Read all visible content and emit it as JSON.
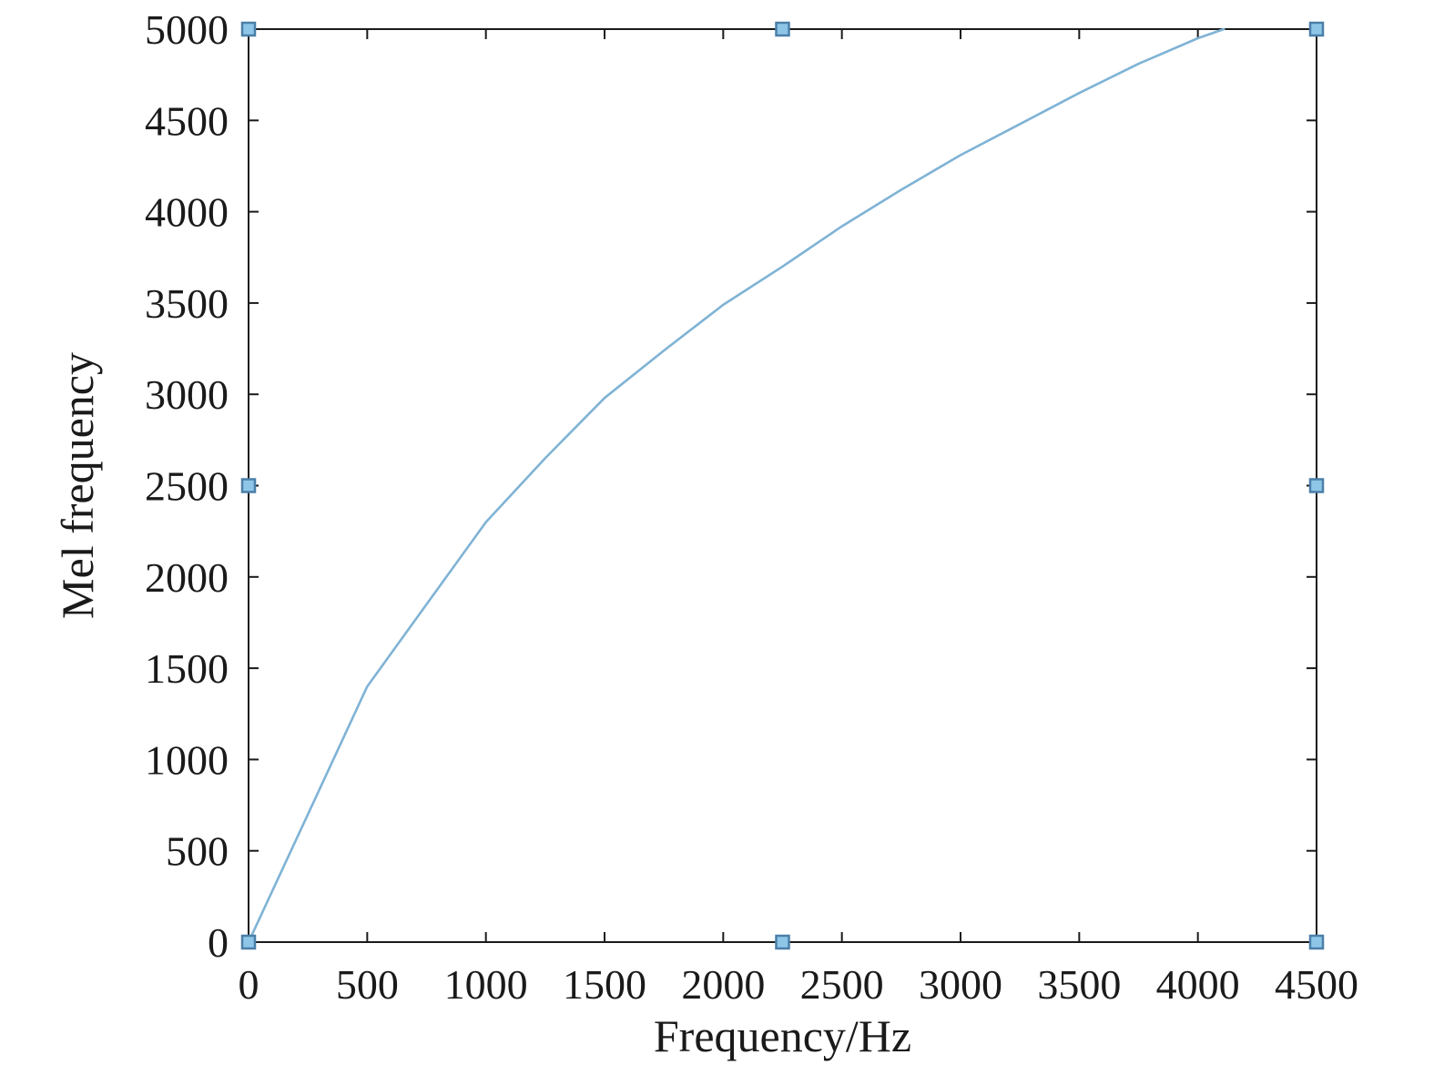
{
  "chart_data": {
    "type": "line",
    "title": "",
    "xlabel": "Frequency/Hz",
    "ylabel": "Mel frequency",
    "xlim": [
      0,
      4500
    ],
    "ylim": [
      0,
      5000
    ],
    "xticks": [
      "0",
      "500",
      "1000",
      "1500",
      "2000",
      "2500",
      "3000",
      "3500",
      "4000",
      "4500"
    ],
    "yticks": [
      "0",
      "500",
      "1000",
      "1500",
      "2000",
      "2500",
      "3000",
      "3500",
      "4000",
      "4500",
      "5000"
    ],
    "grid": false,
    "series": [
      {
        "color": "#7fb3d5",
        "x": [
          0,
          250,
          500,
          750,
          1000,
          1250,
          1500,
          1750,
          2000,
          2250,
          2500,
          2750,
          3000,
          3250,
          3500,
          3750,
          4000,
          4110
        ],
        "y": [
          0,
          700,
          1400,
          1850,
          2300,
          2650,
          2980,
          3240,
          3490,
          3700,
          3920,
          4120,
          4310,
          4480,
          4650,
          4810,
          4950,
          5000
        ]
      }
    ],
    "handle_markers": {
      "color": "#8ec6e8",
      "border_color": "#4a7fa8",
      "points": [
        {
          "x": 0,
          "y": 5000
        },
        {
          "x": 2250,
          "y": 5000
        },
        {
          "x": 4500,
          "y": 5000
        },
        {
          "x": 0,
          "y": 2500
        },
        {
          "x": 4500,
          "y": 2500
        },
        {
          "x": 0,
          "y": 0
        },
        {
          "x": 2250,
          "y": 0
        },
        {
          "x": 4500,
          "y": 0
        }
      ]
    }
  }
}
